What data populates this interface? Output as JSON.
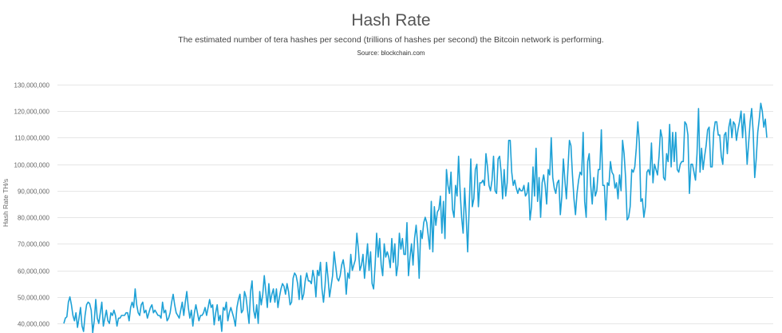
{
  "header": {
    "title": "Hash Rate",
    "subtitle": "The estimated number of tera hashes per second (trillions of hashes per second) the Bitcoin network is performing.",
    "source": "Source: blockchain.com"
  },
  "colors": {
    "line": "#1ea1d6",
    "grid": "#e6e6e6",
    "text": "#666666"
  },
  "chart_data": {
    "type": "line",
    "title": "Hash Rate",
    "subtitle": "The estimated number of tera hashes per second (trillions of hashes per second) the Bitcoin network is performing.",
    "source": "Source: blockchain.com",
    "xlabel": "",
    "ylabel": "Hash Rate TH/s",
    "ylim": [
      40000000,
      130000000
    ],
    "yticks": [
      40000000,
      50000000,
      60000000,
      70000000,
      80000000,
      90000000,
      100000000,
      110000000,
      120000000,
      130000000
    ],
    "ytick_labels": [
      "40,000,000",
      "50,000,000",
      "60,000,000",
      "70,000,000",
      "80,000,000",
      "90,000,000",
      "100,000,000",
      "110,000,000",
      "120,000,000",
      "130,000,000"
    ],
    "grid": true,
    "legend": "none",
    "series": [
      {
        "name": "Hash Rate TH/s",
        "unit": "millions TH/s",
        "values": [
          40,
          42,
          42.5,
          48,
          50,
          47,
          43,
          41,
          44,
          38.5,
          42,
          46,
          39,
          37,
          43,
          47,
          48,
          47.5,
          45,
          36.5,
          41,
          49,
          42,
          40,
          44,
          48,
          39,
          42,
          45,
          41,
          40,
          44,
          43,
          45,
          43,
          39,
          42,
          42,
          43,
          43,
          43,
          44,
          44,
          41,
          46,
          48,
          46,
          53,
          47,
          44,
          43,
          47,
          48,
          44,
          45,
          42,
          44,
          46,
          47,
          44,
          45,
          44,
          43,
          43,
          42,
          48,
          44,
          45,
          41,
          42,
          44,
          48,
          51,
          47,
          44,
          43,
          42,
          45,
          48,
          43,
          48,
          52,
          46,
          42,
          45,
          39,
          44,
          47,
          44,
          41,
          43,
          43,
          44,
          46,
          43,
          46,
          49,
          46,
          47,
          39.5,
          44,
          47,
          41,
          43,
          37,
          46,
          45,
          48,
          41,
          44,
          46,
          44,
          42,
          39,
          46,
          49,
          51,
          44,
          45,
          52,
          50,
          45,
          40,
          52,
          56,
          45,
          42,
          47,
          40,
          52,
          47,
          51,
          58,
          52,
          46,
          55,
          48,
          51,
          53,
          48,
          53,
          46,
          50,
          53,
          55,
          54,
          51,
          55,
          52,
          47,
          48,
          57,
          59,
          58,
          55,
          49,
          58,
          49,
          51,
          56,
          59,
          56,
          56,
          55,
          60,
          57,
          50,
          60,
          58,
          63,
          53,
          48,
          54,
          63,
          57,
          50,
          54,
          58,
          67,
          62,
          57,
          56,
          58,
          62,
          64,
          60,
          51,
          59,
          57,
          66,
          60,
          62,
          64,
          74,
          68,
          60,
          62,
          66,
          57,
          63,
          70,
          60,
          67,
          55,
          53,
          62,
          74,
          65,
          72,
          62,
          58,
          70,
          65,
          67,
          65,
          61,
          72,
          63,
          70,
          58,
          62,
          74,
          68,
          72,
          66,
          66,
          78,
          58,
          65,
          70,
          62,
          72,
          77,
          70,
          57,
          75,
          72,
          78,
          80,
          78,
          73,
          68,
          86,
          67,
          84,
          77,
          82,
          83,
          88,
          74,
          86,
          72,
          98,
          92,
          89,
          97,
          83,
          80,
          92,
          88,
          103,
          90,
          80,
          74,
          91,
          80,
          67,
          84,
          102,
          84,
          87,
          98,
          100,
          84,
          93,
          93,
          94,
          92,
          104,
          99,
          92,
          90,
          94,
          103,
          90,
          89,
          102,
          103,
          97,
          87,
          98,
          88,
          93,
          109,
          109,
          97,
          92,
          94,
          91,
          89,
          91,
          90,
          90,
          92,
          88,
          89,
          93,
          79,
          84,
          99,
          88,
          106,
          86,
          95,
          80,
          93,
          96,
          92,
          85,
          98,
          96,
          110,
          95,
          91,
          89,
          93,
          94,
          81,
          88,
          102,
          94,
          87,
          98,
          109,
          107,
          96,
          87,
          81,
          89,
          94,
          97,
          96,
          112,
          86,
          80,
          101,
          104,
          92,
          85,
          95,
          88,
          90,
          98,
          98,
          113,
          92,
          92,
          79,
          93,
          92,
          101,
          97,
          96,
          91,
          93,
          87,
          96,
          90,
          109,
          104,
          95,
          79,
          80,
          84,
          98,
          97,
          99,
          106,
          116,
          108,
          86,
          87,
          80,
          84,
          97,
          98,
          96,
          108,
          93,
          100,
          98,
          96,
          103,
          113,
          110,
          95,
          94,
          104,
          101,
          115,
          99,
          112,
          101,
          112,
          98,
          97,
          100,
          101,
          101,
          116,
          115,
          111,
          89,
          100,
          100,
          97,
          94,
          104,
          121,
          97,
          106,
          98,
          103,
          107,
          113,
          114,
          99,
          99,
          112,
          116,
          116,
          111,
          111,
          103,
          100,
          111,
          112,
          104,
          114,
          117,
          110,
          116,
          115,
          109,
          113,
          116,
          120,
          110,
          119,
          112,
          100,
          108,
          116,
          121,
          112,
          95,
          102,
          112,
          117,
          123,
          120,
          114,
          117,
          110
        ]
      }
    ]
  }
}
